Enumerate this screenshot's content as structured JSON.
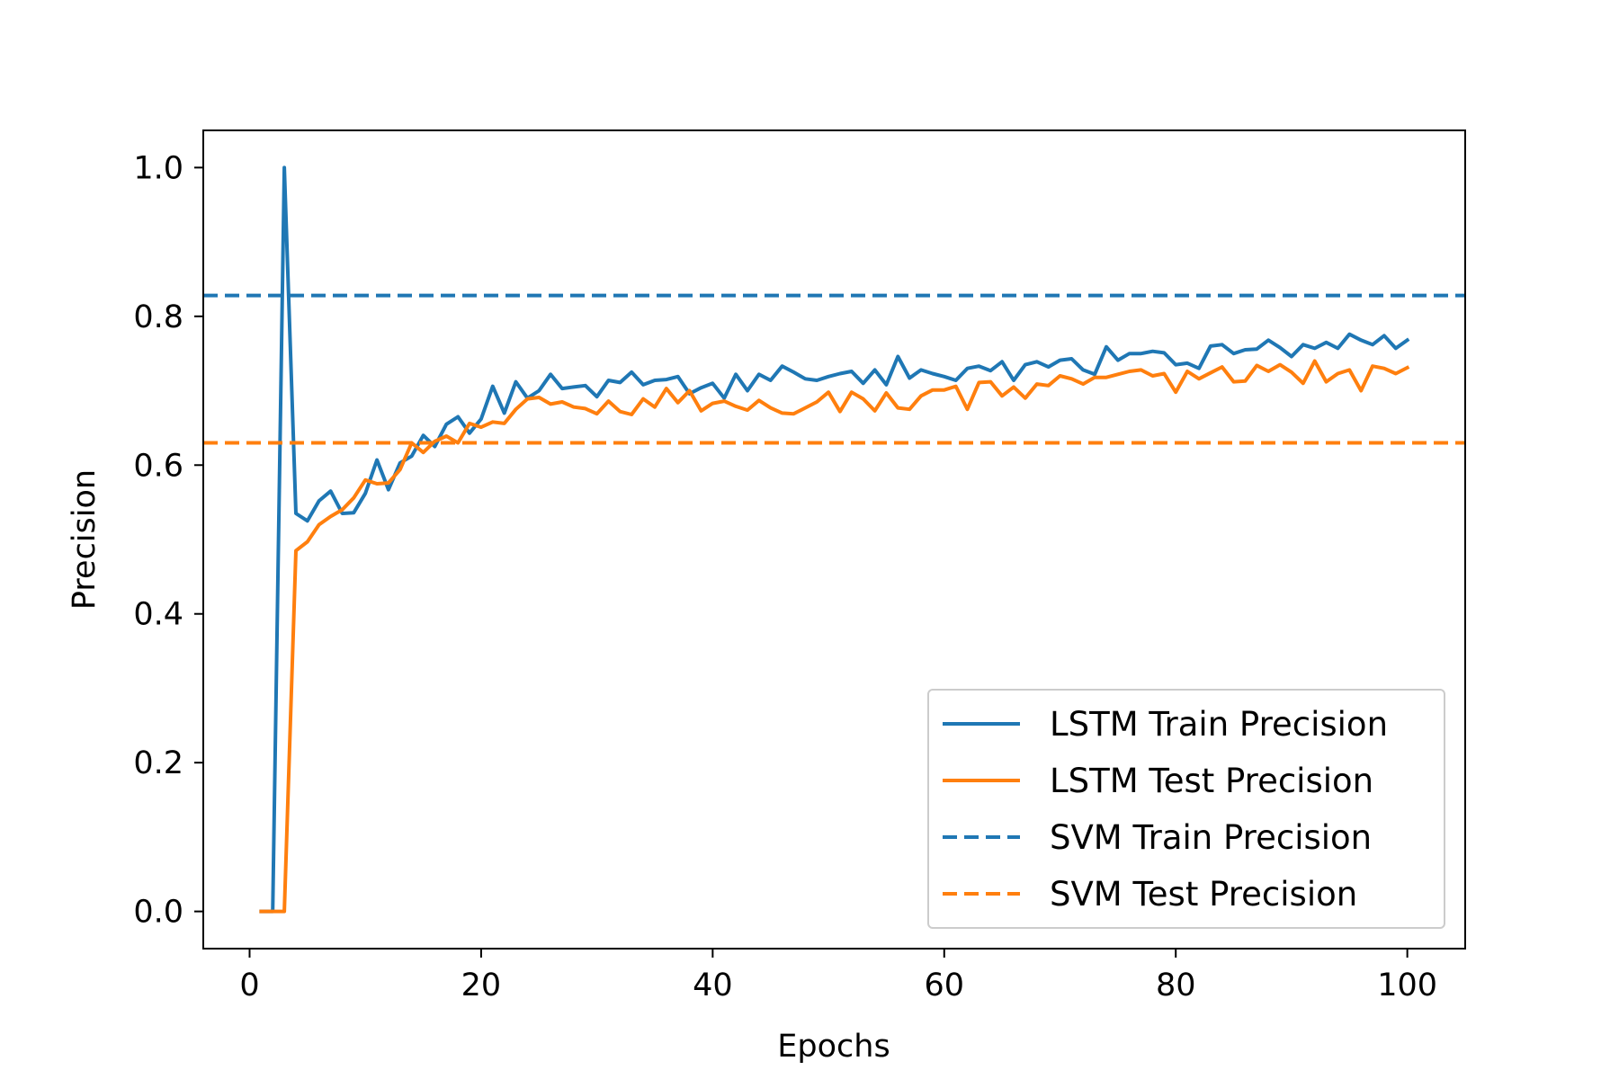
{
  "chart_data": {
    "type": "line",
    "title": "",
    "xlabel": "Epochs",
    "ylabel": "Precision",
    "xlim": [
      -4,
      105
    ],
    "ylim": [
      -0.05,
      1.05
    ],
    "xticks": [
      0,
      20,
      40,
      60,
      80,
      100
    ],
    "xtick_labels": [
      "0",
      "20",
      "40",
      "60",
      "80",
      "100"
    ],
    "yticks": [
      0.0,
      0.2,
      0.4,
      0.6,
      0.8,
      1.0
    ],
    "ytick_labels": [
      "0.0",
      "0.2",
      "0.4",
      "0.6",
      "0.8",
      "1.0"
    ],
    "grid": false,
    "legend_position": "lower-right",
    "x": [
      1,
      2,
      3,
      4,
      5,
      6,
      7,
      8,
      9,
      10,
      11,
      12,
      13,
      14,
      15,
      16,
      17,
      18,
      19,
      20,
      21,
      22,
      23,
      24,
      25,
      26,
      27,
      28,
      29,
      30,
      31,
      32,
      33,
      34,
      35,
      36,
      37,
      38,
      39,
      40,
      41,
      42,
      43,
      44,
      45,
      46,
      47,
      48,
      49,
      50,
      51,
      52,
      53,
      54,
      55,
      56,
      57,
      58,
      59,
      60,
      61,
      62,
      63,
      64,
      65,
      66,
      67,
      68,
      69,
      70,
      71,
      72,
      73,
      74,
      75,
      76,
      77,
      78,
      79,
      80,
      81,
      82,
      83,
      84,
      85,
      86,
      87,
      88,
      89,
      90,
      91,
      92,
      93,
      94,
      95,
      96,
      97,
      98,
      99,
      100
    ],
    "series": [
      {
        "name": "LSTM Train Precision",
        "color": "#1f77b4",
        "style": "solid",
        "values": [
          0.0,
          0.0,
          1.0,
          0.535,
          0.525,
          0.552,
          0.565,
          0.535,
          0.536,
          0.562,
          0.607,
          0.567,
          0.603,
          0.612,
          0.64,
          0.625,
          0.655,
          0.665,
          0.643,
          0.662,
          0.706,
          0.67,
          0.712,
          0.69,
          0.7,
          0.722,
          0.703,
          0.705,
          0.707,
          0.692,
          0.714,
          0.711,
          0.725,
          0.708,
          0.714,
          0.715,
          0.719,
          0.696,
          0.704,
          0.71,
          0.69,
          0.722,
          0.7,
          0.722,
          0.714,
          0.733,
          0.725,
          0.716,
          0.714,
          0.719,
          0.723,
          0.726,
          0.71,
          0.728,
          0.708,
          0.746,
          0.717,
          0.728,
          0.723,
          0.719,
          0.714,
          0.73,
          0.733,
          0.727,
          0.739,
          0.714,
          0.735,
          0.739,
          0.732,
          0.741,
          0.743,
          0.728,
          0.722,
          0.759,
          0.741,
          0.75,
          0.75,
          0.753,
          0.751,
          0.735,
          0.737,
          0.73,
          0.76,
          0.762,
          0.75,
          0.755,
          0.756,
          0.768,
          0.758,
          0.746,
          0.762,
          0.757,
          0.765,
          0.757,
          0.776,
          0.768,
          0.762,
          0.774,
          0.757,
          0.768
        ]
      },
      {
        "name": "LSTM Test Precision",
        "color": "#ff7f0e",
        "style": "solid",
        "values": [
          0.0,
          0.0,
          0.0,
          0.485,
          0.497,
          0.52,
          0.531,
          0.54,
          0.556,
          0.58,
          0.575,
          0.576,
          0.594,
          0.63,
          0.617,
          0.632,
          0.639,
          0.63,
          0.656,
          0.651,
          0.658,
          0.656,
          0.675,
          0.689,
          0.691,
          0.682,
          0.685,
          0.678,
          0.676,
          0.669,
          0.686,
          0.672,
          0.668,
          0.689,
          0.678,
          0.703,
          0.684,
          0.7,
          0.673,
          0.683,
          0.686,
          0.679,
          0.674,
          0.687,
          0.677,
          0.67,
          0.669,
          0.677,
          0.685,
          0.698,
          0.672,
          0.698,
          0.689,
          0.673,
          0.697,
          0.677,
          0.675,
          0.693,
          0.701,
          0.701,
          0.706,
          0.675,
          0.711,
          0.712,
          0.693,
          0.705,
          0.69,
          0.709,
          0.707,
          0.72,
          0.716,
          0.709,
          0.718,
          0.718,
          0.722,
          0.726,
          0.728,
          0.72,
          0.723,
          0.698,
          0.726,
          0.716,
          0.724,
          0.732,
          0.712,
          0.713,
          0.734,
          0.726,
          0.735,
          0.725,
          0.71,
          0.74,
          0.712,
          0.723,
          0.728,
          0.7,
          0.733,
          0.73,
          0.723,
          0.731
        ]
      },
      {
        "name": "SVM Train Precision",
        "color": "#1f77b4",
        "style": "dashed",
        "constant": 0.828
      },
      {
        "name": "SVM Test Precision",
        "color": "#ff7f0e",
        "style": "dashed",
        "constant": 0.63
      }
    ]
  }
}
